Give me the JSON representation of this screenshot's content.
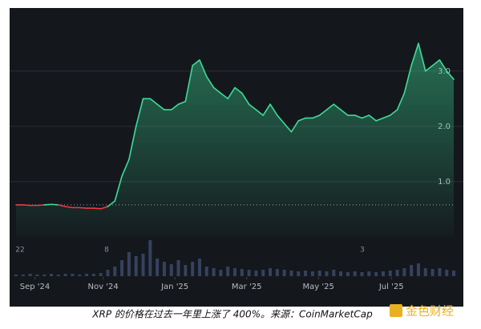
{
  "chart_data": {
    "type": "line",
    "caption": "XRP 的价格在过去一年里上涨了 400%。来源：CoinMarketCap",
    "watermark": "金色财经",
    "x": [
      0,
      6,
      12,
      18,
      24,
      30,
      36,
      42,
      48,
      54,
      60,
      66,
      72,
      78,
      84,
      90,
      96,
      102,
      108,
      114,
      120,
      126,
      132,
      138,
      144,
      150,
      156,
      162,
      168,
      174,
      180,
      186,
      192,
      198,
      204,
      210,
      216,
      222,
      228,
      234,
      240,
      246,
      252,
      258,
      264,
      270,
      276,
      282,
      288,
      294,
      300,
      306,
      312,
      318,
      324,
      330,
      336,
      342,
      348,
      354,
      360,
      366,
      372
    ],
    "series": [
      {
        "name": "XRP",
        "color": "#3ddc97",
        "down_color": "#ea3943",
        "values": [
          0.58,
          0.58,
          0.57,
          0.57,
          0.58,
          0.59,
          0.58,
          0.55,
          0.53,
          0.53,
          0.52,
          0.52,
          0.51,
          0.55,
          0.65,
          1.1,
          1.4,
          2.0,
          2.5,
          2.5,
          2.4,
          2.3,
          2.3,
          2.4,
          2.45,
          3.1,
          3.2,
          2.9,
          2.7,
          2.6,
          2.5,
          2.7,
          2.6,
          2.4,
          2.3,
          2.2,
          2.4,
          2.2,
          2.05,
          1.9,
          2.1,
          2.15,
          2.15,
          2.2,
          2.3,
          2.4,
          2.3,
          2.2,
          2.2,
          2.15,
          2.2,
          2.1,
          2.15,
          2.2,
          2.3,
          2.6,
          3.1,
          3.5,
          3.0,
          3.1,
          3.2,
          3.0,
          2.85
        ],
        "volume": [
          2,
          2,
          3,
          2,
          2,
          3,
          2,
          3,
          3,
          2,
          3,
          3,
          4,
          8,
          12,
          20,
          30,
          25,
          28,
          45,
          22,
          18,
          15,
          20,
          14,
          18,
          22,
          12,
          10,
          8,
          12,
          10,
          9,
          8,
          7,
          8,
          10,
          9,
          8,
          7,
          6,
          7,
          6,
          7,
          6,
          8,
          6,
          5,
          6,
          5,
          6,
          5,
          6,
          7,
          8,
          10,
          14,
          16,
          10,
          9,
          10,
          8,
          7
        ]
      }
    ],
    "baseline": 0.58,
    "xlim": [
      0,
      372
    ],
    "xticks": [
      {
        "value": 16,
        "label": "Sep '24"
      },
      {
        "value": 74,
        "label": "Nov '24"
      },
      {
        "value": 135,
        "label": "Jan '25"
      },
      {
        "value": 196,
        "label": "Mar '25"
      },
      {
        "value": 257,
        "label": "May '25"
      },
      {
        "value": 319,
        "label": "Jul '25"
      }
    ],
    "ylim": [
      0,
      4.14
    ],
    "yticks": [
      {
        "value": 1,
        "label": "1.0"
      },
      {
        "value": 2,
        "label": "2.0"
      },
      {
        "value": 3,
        "label": "3.0"
      }
    ],
    "day_labels": [
      "22",
      "8",
      "3"
    ],
    "grid": true
  }
}
